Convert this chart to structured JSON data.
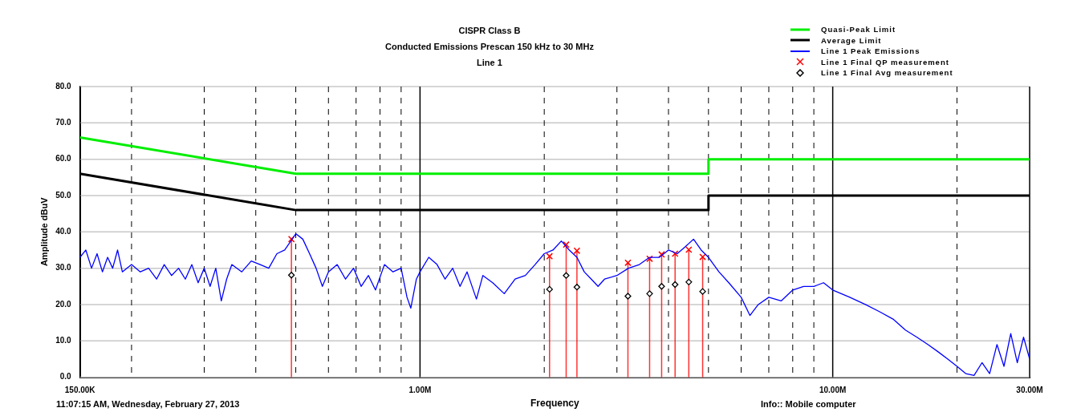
{
  "chart_data": {
    "type": "line",
    "title": "CISPR Class B",
    "subtitle": "Conducted Emissions  Prescan 150 kHz to 30 MHz",
    "annotations": [
      "Line 1",
      "11:07:15 AM, Wednesday, February 27, 2013",
      "Info:: Mobile computer"
    ],
    "xlabel": "Frequency",
    "ylabel": "Amplitude dBuV",
    "log": "x",
    "grid": true,
    "legend": "top right",
    "xlim": [
      150000,
      30000000
    ],
    "xticks": [
      {
        "value": 150000,
        "label": "150.00K"
      },
      {
        "value": 200000,
        "label": null
      },
      {
        "value": 300000,
        "label": null
      },
      {
        "value": 400000,
        "label": null
      },
      {
        "value": 500000,
        "label": null
      },
      {
        "value": 600000,
        "label": null
      },
      {
        "value": 700000,
        "label": null
      },
      {
        "value": 800000,
        "label": null
      },
      {
        "value": 900000,
        "label": null
      },
      {
        "value": 1000000,
        "label": "1.00M"
      },
      {
        "value": 2000000,
        "label": null
      },
      {
        "value": 3000000,
        "label": null
      },
      {
        "value": 4000000,
        "label": null
      },
      {
        "value": 5000000,
        "label": null
      },
      {
        "value": 6000000,
        "label": null
      },
      {
        "value": 7000000,
        "label": null
      },
      {
        "value": 8000000,
        "label": null
      },
      {
        "value": 9000000,
        "label": null
      },
      {
        "value": 10000000,
        "label": "10.00M"
      },
      {
        "value": 20000000,
        "label": null
      },
      {
        "value": 30000000,
        "label": "30.00M"
      }
    ],
    "ylim": [
      0,
      80
    ],
    "yticks": [
      {
        "value": 0,
        "label": "0.0"
      },
      {
        "value": 10,
        "label": "10.0"
      },
      {
        "value": 20,
        "label": "20.0"
      },
      {
        "value": 30,
        "label": "30.0"
      },
      {
        "value": 40,
        "label": "40.0"
      },
      {
        "value": 50,
        "label": "50.0"
      },
      {
        "value": 60,
        "label": "60.0"
      },
      {
        "value": 70,
        "label": "70.0"
      },
      {
        "value": 80,
        "label": "80.0"
      }
    ],
    "series": [
      {
        "name": "Quasi-Peak Limit",
        "color": "#00ee00",
        "x": [
          150000,
          500000,
          5000000,
          5000000,
          30000000
        ],
        "values": [
          66,
          56,
          56,
          60,
          60
        ]
      },
      {
        "name": "Average Limit",
        "color": "#000000",
        "x": [
          150000,
          500000,
          5000000,
          5000000,
          30000000
        ],
        "values": [
          56,
          46,
          46,
          50,
          50
        ]
      },
      {
        "name": "Line 1 Peak Emissions",
        "color": "#0000ff",
        "x": [
          150000,
          155000,
          160000,
          165000,
          170000,
          175000,
          180000,
          185000,
          190000,
          200000,
          210000,
          220000,
          230000,
          240000,
          250000,
          260000,
          270000,
          280000,
          290000,
          300000,
          310000,
          320000,
          330000,
          340000,
          350000,
          370000,
          390000,
          410000,
          430000,
          450000,
          470000,
          490000,
          500000,
          520000,
          540000,
          560000,
          580000,
          600000,
          630000,
          660000,
          690000,
          720000,
          750000,
          780000,
          820000,
          860000,
          900000,
          930000,
          950000,
          980000,
          1000000,
          1050000,
          1100000,
          1150000,
          1200000,
          1250000,
          1300000,
          1370000,
          1420000,
          1500000,
          1600000,
          1700000,
          1800000,
          1900000,
          2000000,
          2100000,
          2200000,
          2300000,
          2400000,
          2500000,
          2600000,
          2700000,
          2800000,
          3000000,
          3200000,
          3400000,
          3600000,
          3800000,
          4000000,
          4200000,
          4400000,
          4600000,
          4800000,
          5000000,
          5300000,
          5600000,
          6000000,
          6300000,
          6600000,
          7000000,
          7500000,
          8000000,
          8500000,
          9000000,
          9500000,
          10000000,
          11000000,
          12000000,
          13000000,
          14000000,
          15000000,
          16000000,
          17000000,
          18000000,
          19000000,
          20000000,
          21000000,
          22000000,
          23000000,
          24000000,
          25000000,
          26000000,
          27000000,
          28000000,
          29000000,
          30000000
        ],
        "values": [
          33,
          35,
          30,
          34,
          29,
          33,
          30,
          35,
          29,
          31,
          29,
          30,
          27,
          31,
          28,
          30,
          27,
          31,
          26,
          30,
          25,
          30,
          21,
          27,
          31,
          29,
          32,
          31,
          30,
          34,
          35,
          38,
          39.5,
          38,
          34,
          30,
          25,
          29,
          31,
          27,
          30,
          25,
          28,
          24,
          31,
          29,
          30,
          22,
          19,
          27,
          29,
          33,
          31,
          27,
          30,
          25,
          29,
          21.5,
          28,
          26,
          23,
          27,
          28,
          31,
          34,
          35,
          37.5,
          35,
          33,
          29,
          27,
          25,
          27,
          28,
          30,
          31,
          33,
          33,
          35,
          34,
          36,
          38,
          35,
          33,
          29,
          26,
          22,
          17,
          20,
          22,
          21,
          24,
          25,
          25,
          26,
          24,
          22,
          20,
          18,
          16,
          13,
          11,
          9,
          7,
          5,
          3,
          1,
          0.5,
          4,
          1,
          9,
          3,
          12,
          4,
          11,
          5
        ]
      },
      {
        "name": "Line 1 Final QP measurement",
        "type": "lollipop",
        "marker": "cross",
        "color": "#ff0000",
        "x": [
          488000,
          2060000,
          2260000,
          2400000,
          3190000,
          3600000,
          3850000,
          4150000,
          4480000,
          4840000
        ],
        "values": [
          38,
          33.3,
          36.5,
          34.8,
          31.5,
          32.6,
          33.8,
          34,
          35.1,
          33.1
        ]
      },
      {
        "name": "Line 1 Final Avg measurement",
        "type": "scatter",
        "marker": "diamond",
        "color": "#000000",
        "x": [
          488000,
          2060000,
          2260000,
          2400000,
          3190000,
          3600000,
          3850000,
          4150000,
          4480000,
          4840000
        ],
        "values": [
          28.1,
          24.2,
          28,
          24.8,
          22.3,
          23,
          25,
          25.5,
          26.2,
          23.6
        ]
      }
    ]
  }
}
